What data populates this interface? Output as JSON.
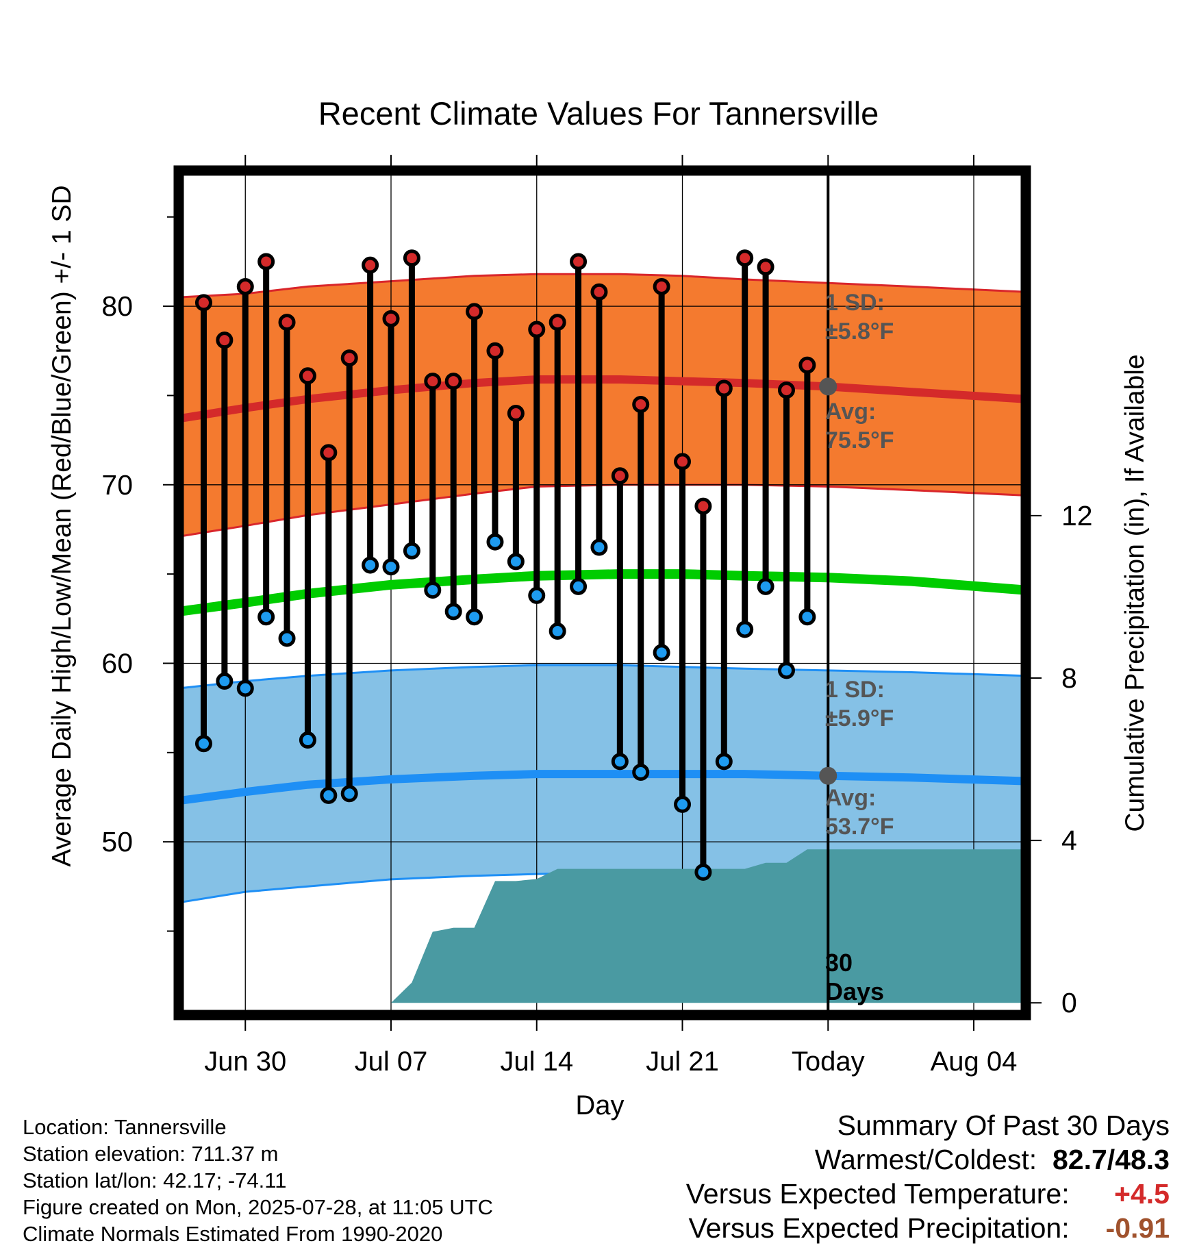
{
  "title": "Recent Climate Values For Tannersville",
  "xlabel": "Day",
  "ylabel": "Average Daily High/Low/Mean (Red/Blue/Green) +/- 1 SD",
  "y2label": "Cumulative Precipitation (in), If Available",
  "colors": {
    "high_band": "#f47a2f",
    "high_band_edge": "#d9262b",
    "high_avg_line": "#d42a2a",
    "low_band": "#85c1e6",
    "low_band_edge": "#1e8ff5",
    "low_avg_line": "#1e8ff5",
    "mean_line": "#00cc00",
    "precip_fill": "#4a9aa2",
    "high_dot": "#d42a2a",
    "low_dot": "#1e9bf0",
    "annotation": "#555555",
    "positive_temp": "#d42a2a",
    "negative_precip": "#a0522d"
  },
  "annotations": {
    "high_sd_line1": "1 SD:",
    "high_sd_line2": "±5.8°F",
    "high_avg_line1": "Avg:",
    "high_avg_line2": "75.5°F",
    "low_sd_line1": "1 SD:",
    "low_sd_line2": "±5.9°F",
    "low_avg_line1": "Avg:",
    "low_avg_line2": "53.7°F",
    "days_line1": "30",
    "days_line2": "Days"
  },
  "info": {
    "location": "Location: Tannersville",
    "elevation": "Station elevation: 711.37 m",
    "latlon": "Station lat/lon: 42.17; -74.11",
    "created": "Figure created on Mon, 2025-07-28, at 11:05 UTC",
    "normals": "Climate Normals Estimated From 1990-2020"
  },
  "summary": {
    "heading": "Summary Of Past 30 Days",
    "warm_cold_label": "Warmest/Coldest:",
    "warm_cold_value": "82.7/48.3",
    "temp_label": "Versus Expected Temperature:",
    "temp_value": "+4.5",
    "precip_label": "Versus Expected Precipitation:",
    "precip_value": "-0.91"
  },
  "chart_data": {
    "type": "line",
    "x_unit": "day (0 = Jun 30, 28 = Today, Jul 28)",
    "xlim": [
      -3.2,
      37.5
    ],
    "ylim": [
      40.3,
      87.6
    ],
    "y2lim": [
      -0.3,
      20.5
    ],
    "x_ticks": [
      {
        "x": 0,
        "label": "Jun 30"
      },
      {
        "x": 7,
        "label": "Jul 07"
      },
      {
        "x": 14,
        "label": "Jul 14"
      },
      {
        "x": 21,
        "label": "Jul 21"
      },
      {
        "x": 28,
        "label": "Today"
      },
      {
        "x": 35,
        "label": "Aug 04"
      }
    ],
    "y_ticks": [
      50,
      60,
      70,
      80
    ],
    "y_minor_ticks": [
      45,
      55,
      65,
      75,
      85
    ],
    "y2_ticks": [
      0,
      4,
      8,
      12
    ],
    "today_x": 28,
    "daily": {
      "x": [
        -2,
        -1,
        0,
        1,
        2,
        3,
        4,
        5,
        6,
        7,
        8,
        9,
        10,
        11,
        12,
        13,
        14,
        15,
        16,
        17,
        18,
        19,
        20,
        21,
        22,
        23,
        24,
        25,
        26,
        27
      ],
      "high": [
        80.2,
        78.1,
        81.1,
        82.5,
        79.1,
        76.1,
        71.8,
        77.1,
        82.3,
        79.3,
        82.7,
        75.8,
        75.8,
        79.7,
        77.5,
        74.0,
        78.7,
        79.1,
        82.5,
        80.8,
        70.5,
        74.5,
        81.1,
        71.3,
        68.8,
        75.4,
        82.7,
        82.2,
        75.3,
        76.7
      ],
      "low": [
        55.5,
        59.0,
        58.6,
        62.6,
        61.4,
        55.7,
        52.6,
        52.7,
        65.5,
        65.4,
        66.3,
        64.1,
        62.9,
        62.6,
        66.8,
        65.7,
        63.8,
        61.8,
        64.3,
        66.5,
        54.5,
        53.9,
        60.6,
        52.1,
        48.3,
        54.5,
        61.9,
        64.3,
        59.6,
        62.6
      ]
    },
    "series": [
      {
        "name": "High +1 SD",
        "x": [
          -3.2,
          0,
          3,
          7,
          11,
          14,
          18,
          21,
          24,
          28,
          32,
          37.5
        ],
        "values": [
          80.5,
          80.7,
          81.1,
          81.4,
          81.7,
          81.8,
          81.8,
          81.7,
          81.5,
          81.3,
          81.1,
          80.8
        ]
      },
      {
        "name": "High avg",
        "x": [
          -3.2,
          0,
          3,
          7,
          11,
          14,
          18,
          21,
          24,
          28,
          32,
          37.5
        ],
        "values": [
          73.7,
          74.3,
          74.8,
          75.3,
          75.7,
          75.9,
          75.9,
          75.8,
          75.7,
          75.5,
          75.2,
          74.8
        ]
      },
      {
        "name": "High -1 SD",
        "x": [
          -3.2,
          0,
          3,
          7,
          11,
          14,
          18,
          21,
          24,
          28,
          32,
          37.5
        ],
        "values": [
          67.1,
          67.7,
          68.3,
          68.9,
          69.5,
          69.9,
          70.0,
          70.0,
          70.0,
          69.9,
          69.7,
          69.4
        ]
      },
      {
        "name": "Mean",
        "x": [
          -3.2,
          0,
          3,
          7,
          11,
          14,
          18,
          21,
          24,
          28,
          32,
          37.5
        ],
        "values": [
          62.9,
          63.4,
          63.9,
          64.4,
          64.7,
          64.9,
          65.0,
          65.0,
          64.9,
          64.8,
          64.6,
          64.1
        ]
      },
      {
        "name": "Low +1 SD",
        "x": [
          -3.2,
          0,
          3,
          7,
          11,
          14,
          18,
          21,
          24,
          28,
          32,
          37.5
        ],
        "values": [
          58.6,
          59.0,
          59.3,
          59.6,
          59.8,
          59.9,
          59.9,
          59.8,
          59.7,
          59.6,
          59.5,
          59.3
        ]
      },
      {
        "name": "Low avg",
        "x": [
          -3.2,
          0,
          3,
          7,
          11,
          14,
          18,
          21,
          24,
          28,
          32,
          37.5
        ],
        "values": [
          52.3,
          52.8,
          53.2,
          53.5,
          53.7,
          53.8,
          53.8,
          53.8,
          53.8,
          53.7,
          53.6,
          53.4
        ]
      },
      {
        "name": "Low -1 SD",
        "x": [
          -3.2,
          0,
          3,
          7,
          11,
          14,
          18,
          21,
          24,
          28,
          32,
          37.5
        ],
        "values": [
          46.6,
          47.2,
          47.5,
          47.9,
          48.1,
          48.2,
          48.3,
          48.3,
          48.3,
          48.2,
          48.1,
          47.9
        ]
      }
    ],
    "precip_cumulative": {
      "x": [
        7,
        8,
        9,
        10,
        11,
        12,
        13,
        14,
        15,
        16,
        17,
        18,
        19,
        20,
        21,
        22,
        23,
        24,
        25,
        26,
        27,
        28,
        37.5
      ],
      "values": [
        0,
        0.5,
        1.75,
        1.85,
        1.85,
        3.0,
        3.0,
        3.05,
        3.3,
        3.3,
        3.3,
        3.3,
        3.3,
        3.3,
        3.3,
        3.3,
        3.3,
        3.3,
        3.45,
        3.45,
        3.78,
        3.78,
        3.78
      ]
    }
  }
}
